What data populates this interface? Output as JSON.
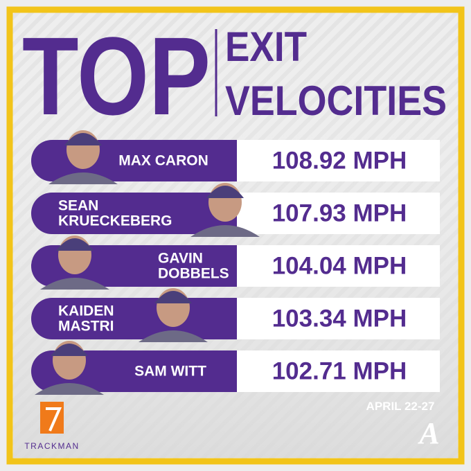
{
  "header": {
    "title": "TOP",
    "subtitle_lines": [
      "EXIT",
      "VELOCITIES"
    ]
  },
  "rows": [
    {
      "name": [
        "MAX CARON"
      ],
      "value": "108.92 MPH"
    },
    {
      "name": [
        "SEAN",
        "KRUECKEBERG"
      ],
      "value": "107.93 MPH"
    },
    {
      "name": [
        "GAVIN",
        "DOBBELS"
      ],
      "value": "104.04 MPH"
    },
    {
      "name": [
        "KAIDEN",
        "MASTRI"
      ],
      "value": "103.34 MPH"
    },
    {
      "name": [
        "SAM WITT"
      ],
      "value": "102.71 MPH"
    }
  ],
  "footer": {
    "dates": "APRIL 22-27",
    "sponsor": "TRACKMAN"
  }
}
